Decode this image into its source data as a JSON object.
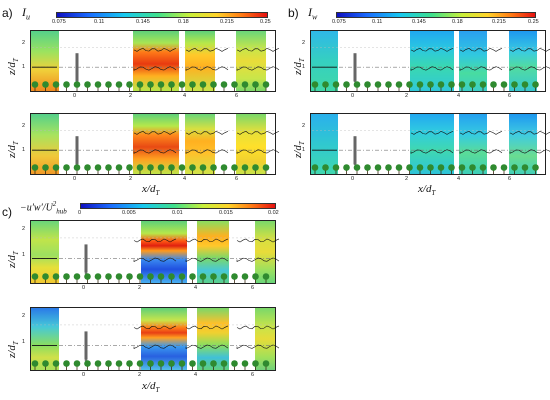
{
  "figure": {
    "panels": [
      {
        "id": "a",
        "letter": "a)",
        "variable": "I",
        "variable_sub": "u",
        "colorbar_ticks": [
          "0.075",
          "0.11",
          "0.145",
          "0.18",
          "0.215",
          "0.25"
        ],
        "xticks": [
          "0",
          "2",
          "4",
          "6"
        ],
        "yticks": [
          "2",
          "1"
        ],
        "ylabel": "z/d",
        "ylabel_sub": "T",
        "xlabel": "x/d",
        "xlabel_sub": "T",
        "rows": 2
      },
      {
        "id": "b",
        "letter": "b)",
        "variable": "I",
        "variable_sub": "w",
        "colorbar_ticks": [
          "0.075",
          "0.11",
          "0.145",
          "0.18",
          "0.215",
          "0.25"
        ],
        "xticks": [
          "0",
          "2",
          "4",
          "6"
        ],
        "yticks": [
          "2",
          "1"
        ],
        "ylabel": "z/d",
        "ylabel_sub": "T",
        "xlabel": "x/d",
        "xlabel_sub": "T",
        "rows": 2
      },
      {
        "id": "c",
        "letter": "c)",
        "variable": "−u′w′/U",
        "variable_sub": "hub",
        "variable_sup": "2",
        "colorbar_ticks": [
          "0",
          "0.005",
          "0.01",
          "0.015",
          "0.02"
        ],
        "xticks": [
          "0",
          "2",
          "4",
          "6"
        ],
        "yticks": [
          "2",
          "1"
        ],
        "ylabel": "z/d",
        "ylabel_sub": "T",
        "xlabel": "x/d",
        "xlabel_sub": "T",
        "rows": 2
      }
    ]
  }
}
